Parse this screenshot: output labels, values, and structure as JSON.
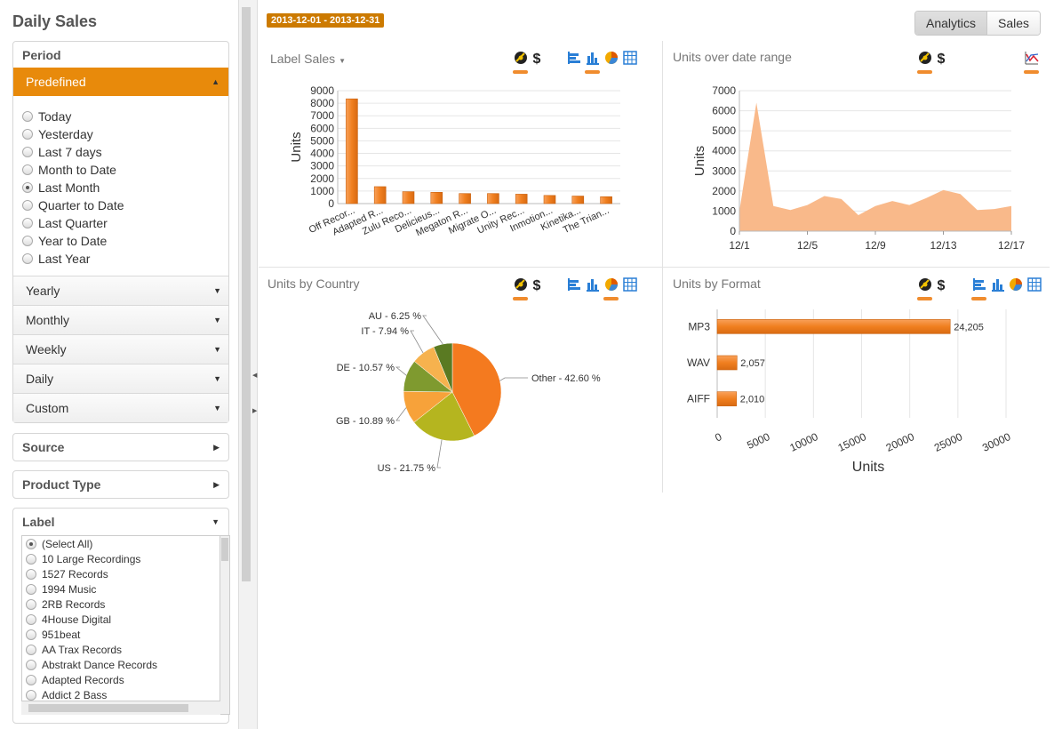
{
  "app": {
    "title": "Daily Sales"
  },
  "sidebar": {
    "period": {
      "header": "Period",
      "predefined_label": "Predefined",
      "options": [
        {
          "label": "Today",
          "selected": false
        },
        {
          "label": "Yesterday",
          "selected": false
        },
        {
          "label": "Last 7 days",
          "selected": false
        },
        {
          "label": "Month to Date",
          "selected": false
        },
        {
          "label": "Last Month",
          "selected": true
        },
        {
          "label": "Quarter to Date",
          "selected": false
        },
        {
          "label": "Last Quarter",
          "selected": false
        },
        {
          "label": "Year to Date",
          "selected": false
        },
        {
          "label": "Last Year",
          "selected": false
        }
      ],
      "groups": [
        "Yearly",
        "Monthly",
        "Weekly",
        "Daily",
        "Custom"
      ]
    },
    "source": {
      "header": "Source"
    },
    "product_type": {
      "header": "Product Type"
    },
    "label": {
      "header": "Label",
      "items": [
        {
          "label": "(Select All)",
          "selected": true
        },
        {
          "label": "10 Large Recordings",
          "selected": false
        },
        {
          "label": "1527 Records",
          "selected": false
        },
        {
          "label": "1994 Music",
          "selected": false
        },
        {
          "label": "2RB Records",
          "selected": false
        },
        {
          "label": "4House Digital",
          "selected": false
        },
        {
          "label": "951beat",
          "selected": false
        },
        {
          "label": "AA Trax Records",
          "selected": false
        },
        {
          "label": "Abstrakt Dance Records",
          "selected": false
        },
        {
          "label": "Adapted Records",
          "selected": false
        },
        {
          "label": "Addict 2 Bass",
          "selected": false
        }
      ]
    }
  },
  "main": {
    "date_range": "2013-12-01 - 2013-12-31",
    "view_tabs": [
      {
        "label": "Analytics",
        "active": true
      },
      {
        "label": "Sales",
        "active": false
      }
    ],
    "panels": {
      "label_sales_title": "Label Sales",
      "units_range_title": "Units over date range",
      "units_country_title": "Units by Country",
      "units_format_title": "Units by Format"
    }
  },
  "colors": {
    "accent": "#e88a0b",
    "bar": "#f07f1f",
    "area": "#f9b98a",
    "pie_other": "#f47a1f",
    "pie_us": "#b5b51f",
    "pie_gb": "#f7a23a",
    "pie_de": "#7f9a2f",
    "pie_it": "#f6b24e",
    "pie_au": "#5a7a22"
  },
  "chart_data": [
    {
      "id": "label_sales",
      "type": "bar",
      "title": "Label Sales",
      "ylabel": "Units",
      "ylim": [
        0,
        9000
      ],
      "yticks": [
        0,
        1000,
        2000,
        3000,
        4000,
        5000,
        6000,
        7000,
        8000,
        9000
      ],
      "categories": [
        "Off Recor...",
        "Adapted R...",
        "Zulu Reco...",
        "Delicieus...",
        "Megaton R...",
        "Migrate O...",
        "Unity Rec...",
        "Inmotion...",
        "Kinetika...",
        "The Trian..."
      ],
      "values": [
        8350,
        1350,
        950,
        900,
        800,
        800,
        750,
        650,
        600,
        550
      ],
      "grid": true
    },
    {
      "id": "units_range",
      "type": "area",
      "title": "Units over date range",
      "ylabel": "Units",
      "ylim": [
        0,
        7000
      ],
      "yticks": [
        0,
        1000,
        2000,
        3000,
        4000,
        5000,
        6000,
        7000
      ],
      "xlim": [
        1,
        17
      ],
      "xtick_labels": [
        "12/1",
        "12/5",
        "12/9",
        "12/13",
        "12/17"
      ],
      "xtick_values": [
        1,
        5,
        9,
        13,
        17
      ],
      "x": [
        1,
        2,
        3,
        4,
        5,
        6,
        7,
        8,
        9,
        10,
        11,
        12,
        13,
        14,
        15,
        16,
        17
      ],
      "values": [
        1000,
        6400,
        1250,
        1050,
        1300,
        1750,
        1600,
        800,
        1250,
        1500,
        1300,
        1650,
        2050,
        1850,
        1050,
        1100,
        1250
      ],
      "grid": true
    },
    {
      "id": "units_country",
      "type": "pie",
      "title": "Units by Country",
      "slices": [
        {
          "label": "Other - 42.60 %",
          "value": 42.6,
          "color": "#f47a1f"
        },
        {
          "label": "US - 21.75 %",
          "value": 21.75,
          "color": "#b5b51f"
        },
        {
          "label": "GB - 10.89 %",
          "value": 10.89,
          "color": "#f7a23a"
        },
        {
          "label": "DE - 10.57 %",
          "value": 10.57,
          "color": "#7f9a2f"
        },
        {
          "label": "IT - 7.94 %",
          "value": 7.94,
          "color": "#f6b24e"
        },
        {
          "label": "AU - 6.25 %",
          "value": 6.25,
          "color": "#5a7a22"
        }
      ]
    },
    {
      "id": "units_format",
      "type": "bar",
      "orientation": "horizontal",
      "title": "Units by Format",
      "xlabel": "Units",
      "xlim": [
        0,
        30000
      ],
      "xticks": [
        0,
        5000,
        10000,
        15000,
        20000,
        25000,
        30000
      ],
      "categories": [
        "MP3",
        "WAV",
        "AIFF"
      ],
      "values": [
        24205,
        2057,
        2010
      ],
      "value_labels": [
        "24,205",
        "2,057",
        "2,010"
      ],
      "grid": true
    }
  ]
}
